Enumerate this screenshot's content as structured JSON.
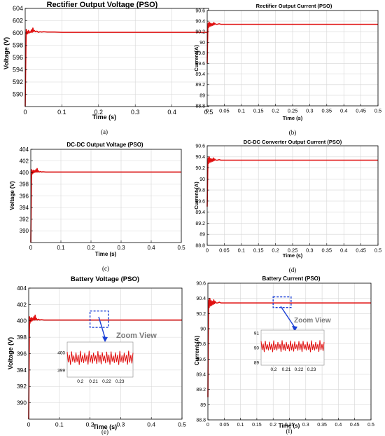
{
  "chart_data": [
    {
      "type": "line",
      "title": "Rectifier Output Voltage (PSO)",
      "xlabel": "Time (s)",
      "ylabel": "Voltage (V)",
      "caption": "(a)",
      "xlim": [
        0,
        0.5
      ],
      "ylim": [
        588,
        604
      ],
      "xticks": [
        "0",
        "0.1",
        "0.2",
        "0.3",
        "0.4",
        "0.5"
      ],
      "yticks": [
        "590",
        "592",
        "594",
        "596",
        "598",
        "600",
        "602",
        "604"
      ],
      "grid": true,
      "series": [
        {
          "color": "#e01010",
          "x": [
            0,
            0.001,
            0.002,
            0.003,
            0.004,
            0.005,
            0.007,
            0.009,
            0.011,
            0.013,
            0.015,
            0.017,
            0.019,
            0.021,
            0.023,
            0.025,
            0.028,
            0.032,
            0.036,
            0.04,
            0.045,
            0.05,
            0.06,
            0.08,
            0.1,
            0.15,
            0.2,
            0.25,
            0.3,
            0.35,
            0.4,
            0.45,
            0.5
          ],
          "y": [
            588,
            593,
            598,
            600.6,
            599.8,
            600.3,
            599.9,
            600.4,
            600.0,
            600.2,
            600.1,
            600.5,
            600.1,
            600.8,
            600.2,
            600.4,
            600.2,
            600.3,
            600.1,
            600.2,
            600.15,
            600.2,
            600.15,
            600.15,
            600.1,
            600.1,
            600.1,
            600.1,
            600.1,
            600.1,
            600.1,
            600.1,
            600.1
          ]
        }
      ]
    },
    {
      "type": "line",
      "title": "Rectifier Output Current (PSO)",
      "xlabel": "Time (s)",
      "ylabel": "Current(A)",
      "caption": "(b)",
      "xlim": [
        0,
        0.5
      ],
      "ylim": [
        88.8,
        90.6
      ],
      "xticks": [
        "0",
        "0.05",
        "0.1",
        "0.15",
        "0.2",
        "0.25",
        "0.3",
        "0.35",
        "0.4",
        "0.45",
        "0.5"
      ],
      "yticks": [
        "88.8",
        "89",
        "89.2",
        "89.4",
        "89.6",
        "89.8",
        "90",
        "90.2",
        "90.4",
        "90.6"
      ],
      "grid": true,
      "series": [
        {
          "color": "#e01010",
          "x": [
            0,
            0.001,
            0.002,
            0.003,
            0.004,
            0.006,
            0.008,
            0.01,
            0.012,
            0.014,
            0.016,
            0.018,
            0.02,
            0.022,
            0.025,
            0.03,
            0.035,
            0.04,
            0.05,
            0.07,
            0.1,
            0.2,
            0.3,
            0.4,
            0.5
          ],
          "y": [
            89.6,
            90.0,
            90.3,
            90.36,
            90.28,
            90.38,
            90.3,
            90.36,
            90.31,
            90.35,
            90.32,
            90.37,
            90.33,
            90.36,
            90.34,
            90.34,
            90.35,
            90.34,
            90.34,
            90.34,
            90.34,
            90.34,
            90.34,
            90.34,
            90.34
          ]
        }
      ]
    },
    {
      "type": "line",
      "title": "DC-DC Output Voltage (PSO)",
      "xlabel": "Time (s)",
      "ylabel": "Voltage (V)",
      "caption": "(c)",
      "xlim": [
        0,
        0.5
      ],
      "ylim": [
        388,
        404
      ],
      "xticks": [
        "0",
        "0.1",
        "0.2",
        "0.3",
        "0.4",
        "0.5"
      ],
      "yticks": [
        "390",
        "392",
        "394",
        "396",
        "398",
        "400",
        "402",
        "404"
      ],
      "grid": true,
      "series": [
        {
          "color": "#e01010",
          "x": [
            0,
            0.001,
            0.002,
            0.003,
            0.004,
            0.005,
            0.007,
            0.009,
            0.011,
            0.013,
            0.015,
            0.017,
            0.019,
            0.021,
            0.023,
            0.025,
            0.028,
            0.032,
            0.036,
            0.04,
            0.05,
            0.1,
            0.2,
            0.3,
            0.4,
            0.5
          ],
          "y": [
            388,
            393,
            398,
            400.5,
            399.7,
            400.3,
            399.9,
            400.4,
            400.0,
            400.3,
            400.1,
            400.5,
            400.1,
            400.7,
            400.1,
            400.3,
            400.1,
            400.2,
            400.1,
            400.15,
            400.1,
            400.1,
            400.1,
            400.1,
            400.1,
            400.1
          ]
        }
      ]
    },
    {
      "type": "line",
      "title": "DC-DC Converter Output Current (PSO)",
      "xlabel": "Time (s)",
      "ylabel": "Current (A)",
      "caption": "(d)",
      "xlim": [
        0,
        0.5
      ],
      "ylim": [
        88.8,
        90.6
      ],
      "xticks": [
        "0",
        "0.05",
        "0.1",
        "0.15",
        "0.2",
        "0.25",
        "0.3",
        "0.35",
        "0.4",
        "0.45",
        "0.5"
      ],
      "yticks": [
        "88.8",
        "89",
        "89.2",
        "89.4",
        "89.6",
        "89.8",
        "90",
        "90.2",
        "90.4",
        "90.6"
      ],
      "grid": true,
      "series": [
        {
          "color": "#e01010",
          "x": [
            0,
            0.001,
            0.002,
            0.003,
            0.004,
            0.006,
            0.008,
            0.01,
            0.012,
            0.014,
            0.016,
            0.018,
            0.02,
            0.022,
            0.025,
            0.03,
            0.035,
            0.04,
            0.05,
            0.07,
            0.1,
            0.2,
            0.3,
            0.4,
            0.5
          ],
          "y": [
            89.5,
            89.9,
            90.3,
            90.38,
            90.28,
            90.4,
            90.3,
            90.37,
            90.31,
            90.36,
            90.32,
            90.38,
            90.33,
            90.36,
            90.34,
            90.34,
            90.35,
            90.34,
            90.34,
            90.34,
            90.34,
            90.34,
            90.34,
            90.34,
            90.34
          ]
        }
      ]
    },
    {
      "type": "line",
      "title": "Battery Voltage (PSO)",
      "xlabel": "Time (s)",
      "ylabel": "Voltage (V)",
      "caption": "(e)",
      "xlim": [
        0,
        0.5
      ],
      "ylim": [
        388,
        404
      ],
      "xticks": [
        "0",
        "0.1",
        "0.2",
        "0.3",
        "0.4",
        "0.5"
      ],
      "yticks": [
        "390",
        "392",
        "394",
        "396",
        "398",
        "400",
        "402",
        "404"
      ],
      "grid": true,
      "annotation": "Zoom View",
      "zoom_box": {
        "x": [
          0.2,
          0.26
        ],
        "y": [
          399.2,
          401.2
        ]
      },
      "inset": {
        "xlim": [
          0.19,
          0.24
        ],
        "ylim": [
          398.6,
          400.6
        ],
        "xticks": [
          "0.2",
          "0.21",
          "0.22",
          "0.23"
        ],
        "yticks": [
          "399",
          "400"
        ]
      },
      "series": [
        {
          "color": "#e01010",
          "x": [
            0,
            0.001,
            0.002,
            0.003,
            0.004,
            0.005,
            0.007,
            0.009,
            0.011,
            0.013,
            0.015,
            0.017,
            0.019,
            0.021,
            0.023,
            0.025,
            0.028,
            0.032,
            0.036,
            0.04,
            0.05,
            0.1,
            0.2,
            0.3,
            0.4,
            0.5
          ],
          "y": [
            388,
            393,
            398,
            400.5,
            399.7,
            400.3,
            399.9,
            400.4,
            400.0,
            400.3,
            400.1,
            400.5,
            400.1,
            400.7,
            400.1,
            400.3,
            400.1,
            400.2,
            400.1,
            400.15,
            400.1,
            400.1,
            400.1,
            400.1,
            400.1,
            400.1
          ]
        }
      ]
    },
    {
      "type": "line",
      "title": "Battery Current (PSO)",
      "xlabel": "Time (s)",
      "ylabel": "Current (A)",
      "caption": "(f)",
      "xlim": [
        0,
        0.5
      ],
      "ylim": [
        88.8,
        90.6
      ],
      "xticks": [
        "0",
        "0.05",
        "0.1",
        "0.15",
        "0.2",
        "0.25",
        "0.3",
        "0.35",
        "0.4",
        "0.45",
        "0.5"
      ],
      "yticks": [
        "88.8",
        "89",
        "89.2",
        "89.4",
        "89.6",
        "89.8",
        "90",
        "90.2",
        "90.4",
        "90.6"
      ],
      "grid": true,
      "annotation": "Zoom View",
      "zoom_box": {
        "x": [
          0.2,
          0.255
        ],
        "y": [
          90.28,
          90.42
        ]
      },
      "inset": {
        "xlim": [
          0.19,
          0.24
        ],
        "ylim": [
          88.8,
          91.2
        ],
        "xticks": [
          "0.2",
          "0.21",
          "0.22",
          "0.23"
        ],
        "yticks": [
          "89",
          "90",
          "91"
        ]
      },
      "series": [
        {
          "color": "#e01010",
          "x": [
            0,
            0.001,
            0.002,
            0.003,
            0.004,
            0.006,
            0.008,
            0.01,
            0.012,
            0.014,
            0.016,
            0.018,
            0.02,
            0.022,
            0.025,
            0.03,
            0.035,
            0.04,
            0.05,
            0.07,
            0.1,
            0.2,
            0.3,
            0.4,
            0.5
          ],
          "y": [
            89.1,
            89.8,
            90.3,
            90.38,
            90.28,
            90.4,
            90.3,
            90.37,
            90.31,
            90.36,
            90.32,
            90.38,
            90.33,
            90.36,
            90.34,
            90.34,
            90.35,
            90.34,
            90.34,
            90.34,
            90.34,
            90.34,
            90.34,
            90.34,
            90.34
          ]
        }
      ]
    }
  ]
}
